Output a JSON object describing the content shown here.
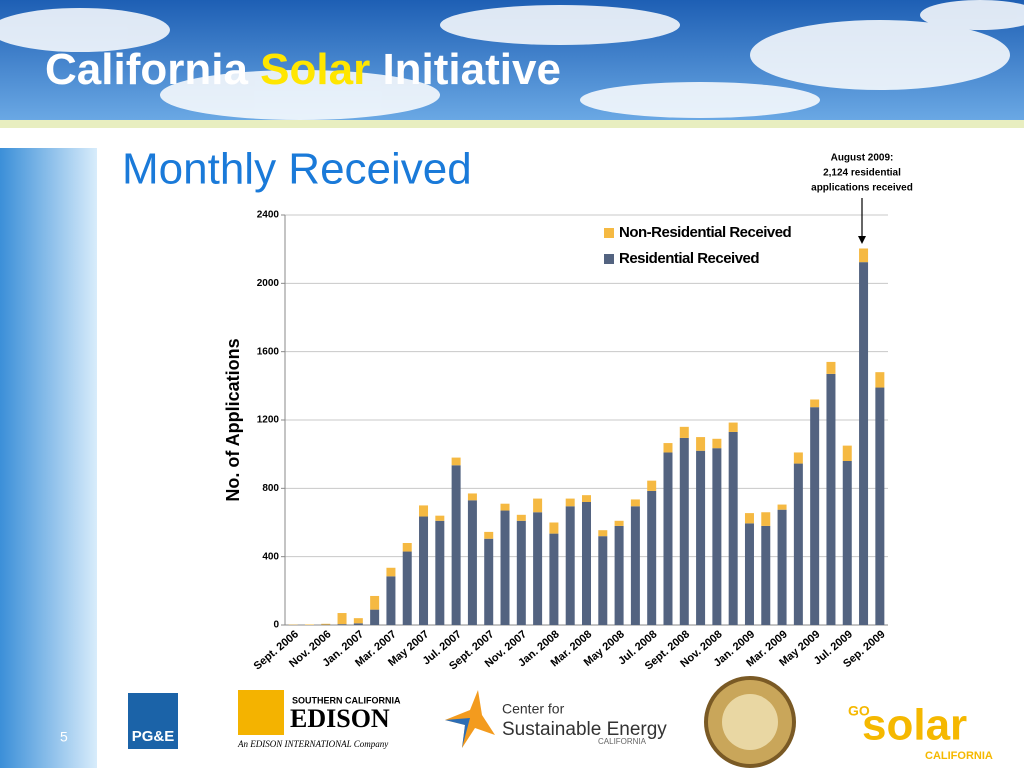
{
  "slide": {
    "title_parts": [
      "California",
      "Solar",
      "Initiative"
    ],
    "heading": "Monthly Received",
    "page_number": "5",
    "logos": {
      "pge": "PG&E",
      "edison_top": "SOUTHERN CALIFORNIA",
      "edison_name": "EDISON",
      "edison_sub": "An EDISON INTERNATIONAL Company",
      "cse_1": "Center for",
      "cse_2": "Sustainable Energy",
      "cse_3": "CALIFORNIA",
      "go": "GO",
      "solar": "solar",
      "go_sub": "CALIFORNIA"
    }
  },
  "chart_data": {
    "type": "stacked_bar",
    "ylabel": "No. of Applications",
    "annotation": [
      "August 2009:",
      "2,124 residential",
      "applications received"
    ],
    "categories": [
      "Sept. 2006",
      null,
      "Nov. 2006",
      null,
      "Jan. 2007",
      null,
      "Mar. 2007",
      null,
      "May 2007",
      null,
      "Jul. 2007",
      null,
      "Sept. 2007",
      null,
      "Nov. 2007",
      null,
      "Jan. 2008",
      null,
      "Mar. 2008",
      null,
      "May 2008",
      null,
      "Jul. 2008",
      null,
      "Sept. 2008",
      null,
      "Nov. 2008",
      null,
      "Jan. 2009",
      null,
      "Mar. 2009",
      null,
      "May 2009",
      null,
      "Jul. 2009",
      null,
      "Sep. 2009"
    ],
    "series": [
      {
        "name": "Residential Received",
        "color": "#536380",
        "values": [
          0,
          0,
          2,
          5,
          10,
          90,
          285,
          430,
          635,
          610,
          935,
          730,
          505,
          670,
          610,
          660,
          535,
          695,
          720,
          520,
          580,
          695,
          785,
          1010,
          1095,
          1020,
          1035,
          1130,
          595,
          580,
          675,
          945,
          1275,
          1470,
          960,
          2124,
          1390
        ]
      },
      {
        "name": "Non-Residential Received",
        "color": "#f5b942",
        "values": [
          2,
          3,
          5,
          65,
          30,
          80,
          50,
          50,
          65,
          30,
          45,
          40,
          40,
          40,
          35,
          80,
          65,
          45,
          40,
          35,
          30,
          40,
          60,
          55,
          65,
          80,
          55,
          55,
          60,
          80,
          30,
          65,
          45,
          70,
          90,
          80,
          90
        ]
      }
    ],
    "ylim": [
      0,
      2400
    ],
    "yticks": [
      0,
      400,
      800,
      1200,
      1600,
      2000,
      2400
    ],
    "grid": true,
    "legend": "top-right"
  }
}
